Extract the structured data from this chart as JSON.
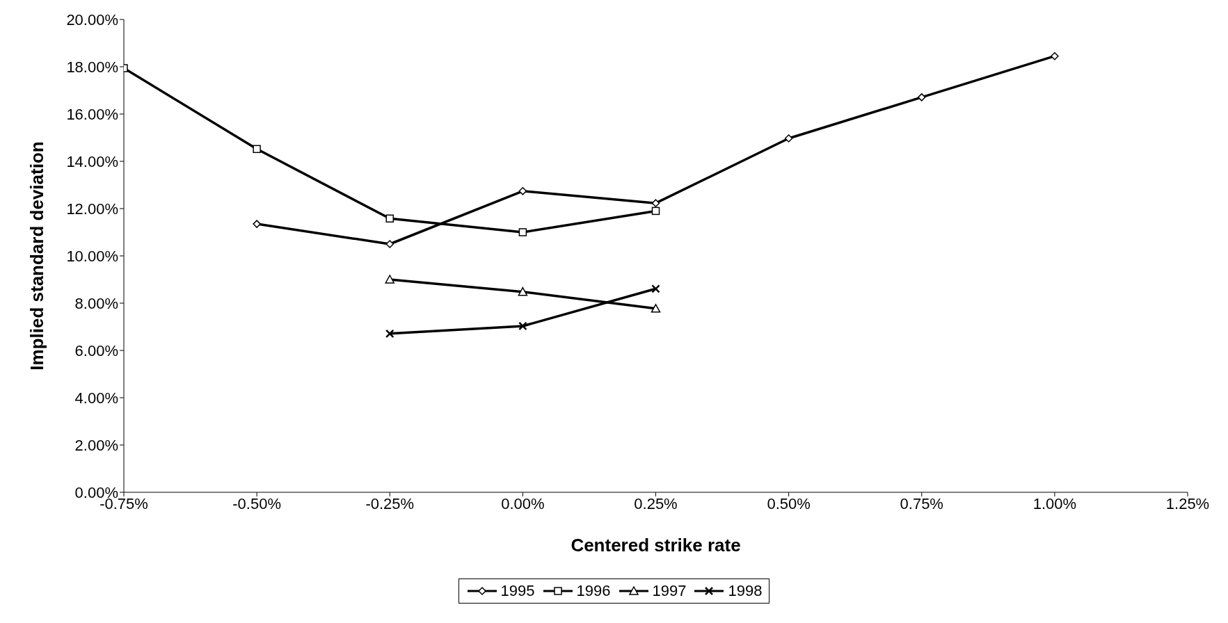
{
  "chart_data": {
    "type": "line",
    "xlabel": "Centered strike rate",
    "ylabel": "Implied standard deviation",
    "xlim": [
      -0.75,
      1.25
    ],
    "xticks": [
      {
        "value": -0.75,
        "label": "-0.75%"
      },
      {
        "value": -0.5,
        "label": "-0.50%"
      },
      {
        "value": -0.25,
        "label": "-0.25%"
      },
      {
        "value": 0,
        "label": "0.00%"
      },
      {
        "value": 0.25,
        "label": "0.25%"
      },
      {
        "value": 0.5,
        "label": "0.50%"
      },
      {
        "value": 0.75,
        "label": "0.75%"
      },
      {
        "value": 1,
        "label": "1.00%"
      },
      {
        "value": 1.25,
        "label": "1.25%"
      }
    ],
    "ylim": [
      0,
      20
    ],
    "yticks": [
      {
        "value": 0,
        "label": "0.00%"
      },
      {
        "value": 2,
        "label": "2.00%"
      },
      {
        "value": 4,
        "label": "4.00%"
      },
      {
        "value": 6,
        "label": "6.00%"
      },
      {
        "value": 8,
        "label": "8.00%"
      },
      {
        "value": 10,
        "label": "10.00%"
      },
      {
        "value": 12,
        "label": "12.00%"
      },
      {
        "value": 14,
        "label": "14.00%"
      },
      {
        "value": 16,
        "label": "16.00%"
      },
      {
        "value": 18,
        "label": "18.00%"
      },
      {
        "value": 20,
        "label": "20.00%"
      }
    ],
    "grid": false,
    "legend": "bottom",
    "line_style": "solid",
    "series": [
      {
        "name": "1995",
        "color": "#000000",
        "marker": "diamond",
        "x": [
          -0.5,
          -0.25,
          0,
          0.25,
          0.5,
          0.75,
          1
        ],
        "values": [
          11.35,
          10.5,
          12.74,
          12.23,
          14.97,
          16.71,
          18.45
        ]
      },
      {
        "name": "1996",
        "color": "#000000",
        "marker": "square",
        "x": [
          -0.75,
          -0.5,
          -0.25,
          0,
          0.25
        ],
        "values": [
          17.94,
          14.52,
          11.58,
          11.0,
          11.9
        ]
      },
      {
        "name": "1997",
        "color": "#000000",
        "marker": "triangle",
        "x": [
          -0.25,
          0,
          0.25
        ],
        "values": [
          9.0,
          8.48,
          7.77
        ]
      },
      {
        "name": "1998",
        "color": "#000000",
        "marker": "cross",
        "x": [
          -0.25,
          0,
          0.25
        ],
        "values": [
          6.71,
          7.03,
          8.61
        ]
      }
    ]
  }
}
